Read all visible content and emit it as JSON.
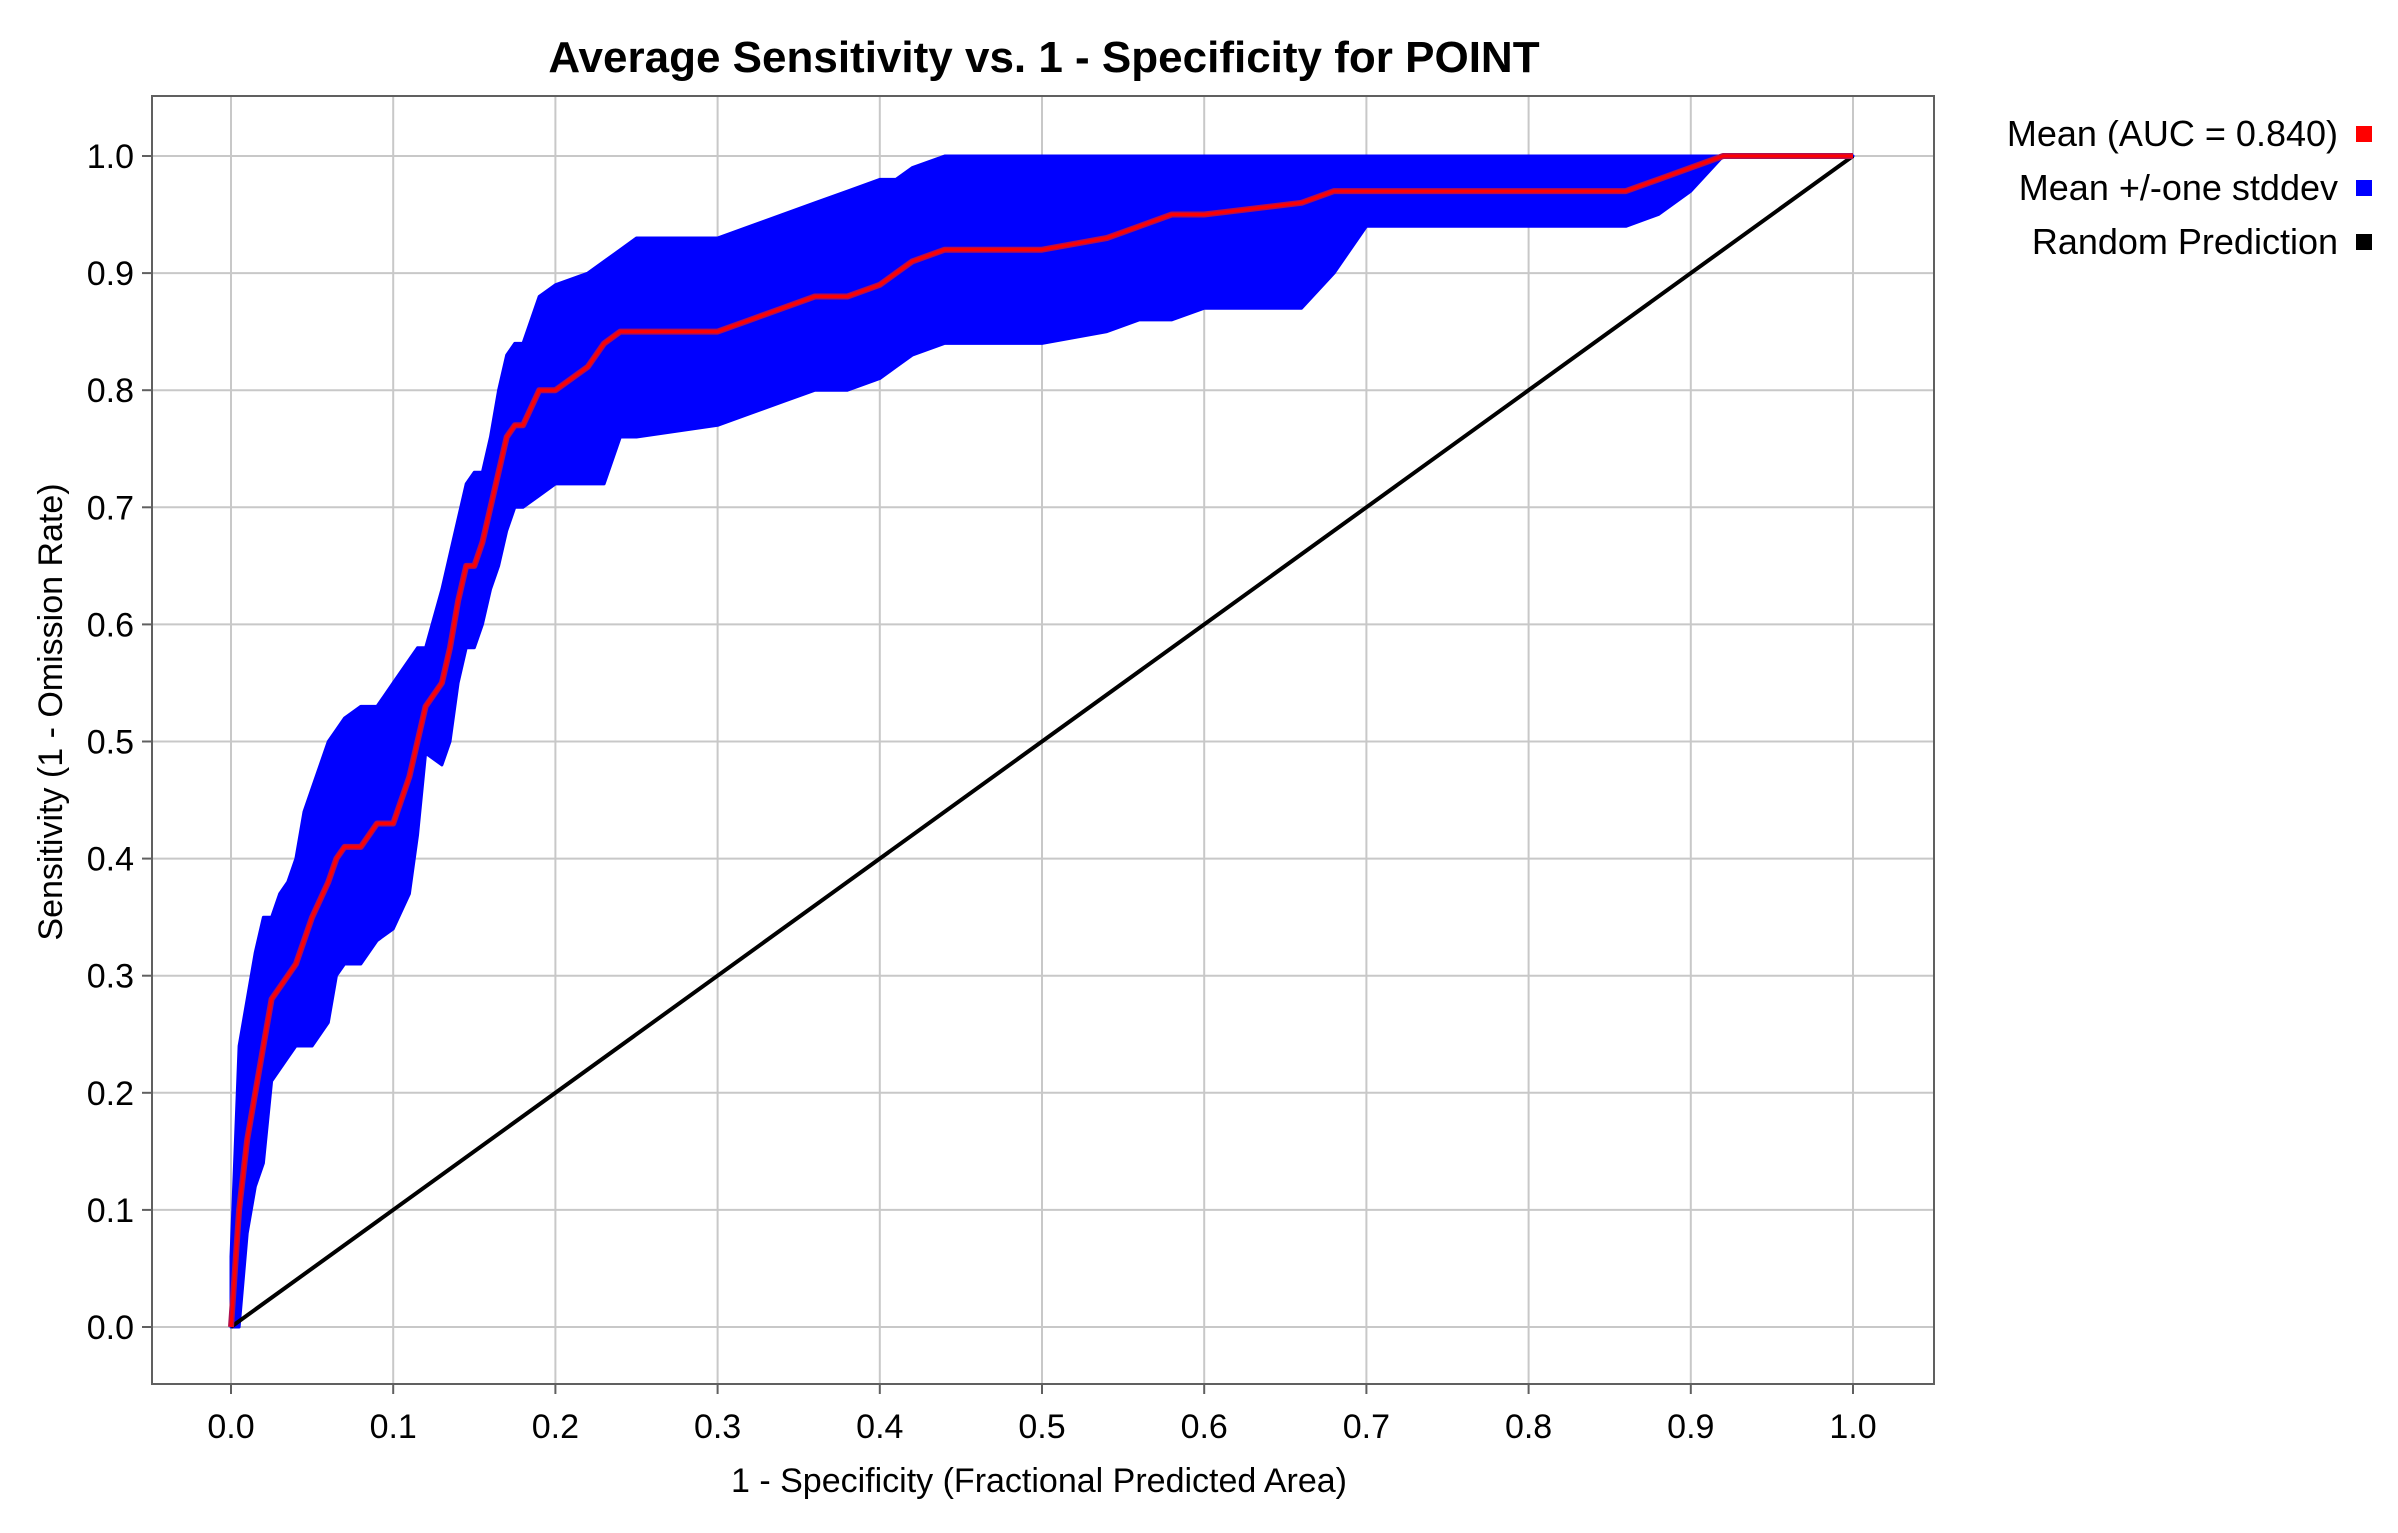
{
  "chart_data": {
    "type": "line",
    "title": "Average Sensitivity vs. 1 - Specificity for POINT",
    "xlabel": "1 - Specificity (Fractional Predicted Area)",
    "ylabel": "Sensitivity (1 - Omission Rate)",
    "xlim": [
      0.0,
      1.0
    ],
    "ylim": [
      0.0,
      1.0
    ],
    "xticks": [
      "0.0",
      "0.1",
      "0.2",
      "0.3",
      "0.4",
      "0.5",
      "0.6",
      "0.7",
      "0.8",
      "0.9",
      "1.0"
    ],
    "yticks": [
      "0.0",
      "0.1",
      "0.2",
      "0.3",
      "0.4",
      "0.5",
      "0.6",
      "0.7",
      "0.8",
      "0.9",
      "1.0"
    ],
    "grid": true,
    "legend_position": "right",
    "series": [
      {
        "name": "Mean (AUC = 0.840)",
        "color": "#ff0000",
        "x": [
          0.0,
          0.005,
          0.01,
          0.015,
          0.02,
          0.025,
          0.03,
          0.035,
          0.04,
          0.045,
          0.05,
          0.06,
          0.065,
          0.07,
          0.08,
          0.09,
          0.1,
          0.11,
          0.115,
          0.12,
          0.13,
          0.135,
          0.14,
          0.145,
          0.15,
          0.155,
          0.16,
          0.165,
          0.17,
          0.175,
          0.18,
          0.19,
          0.2,
          0.22,
          0.23,
          0.24,
          0.25,
          0.3,
          0.32,
          0.34,
          0.36,
          0.38,
          0.4,
          0.41,
          0.42,
          0.44,
          0.5,
          0.54,
          0.56,
          0.58,
          0.6,
          0.66,
          0.68,
          0.7,
          0.74,
          0.86,
          0.88,
          0.9,
          0.92,
          0.94,
          1.0
        ],
        "y": [
          0.0,
          0.1,
          0.16,
          0.2,
          0.24,
          0.28,
          0.29,
          0.3,
          0.31,
          0.33,
          0.35,
          0.38,
          0.4,
          0.41,
          0.41,
          0.43,
          0.43,
          0.47,
          0.5,
          0.53,
          0.55,
          0.58,
          0.62,
          0.65,
          0.65,
          0.67,
          0.7,
          0.73,
          0.76,
          0.77,
          0.77,
          0.8,
          0.8,
          0.82,
          0.84,
          0.85,
          0.85,
          0.85,
          0.86,
          0.87,
          0.88,
          0.88,
          0.89,
          0.9,
          0.91,
          0.92,
          0.92,
          0.93,
          0.94,
          0.95,
          0.95,
          0.96,
          0.97,
          0.97,
          0.97,
          0.97,
          0.98,
          0.99,
          1.0,
          1.0,
          1.0
        ]
      },
      {
        "name": "Mean +/-one stddev",
        "color": "#0000ff",
        "x": [
          0.0,
          0.005,
          0.01,
          0.015,
          0.02,
          0.025,
          0.03,
          0.035,
          0.04,
          0.045,
          0.05,
          0.06,
          0.065,
          0.07,
          0.08,
          0.09,
          0.1,
          0.11,
          0.115,
          0.12,
          0.13,
          0.135,
          0.14,
          0.145,
          0.15,
          0.155,
          0.16,
          0.165,
          0.17,
          0.175,
          0.18,
          0.19,
          0.2,
          0.22,
          0.23,
          0.24,
          0.25,
          0.3,
          0.32,
          0.34,
          0.36,
          0.38,
          0.4,
          0.41,
          0.42,
          0.44,
          0.5,
          0.54,
          0.56,
          0.58,
          0.6,
          0.66,
          0.68,
          0.7,
          0.74,
          0.86,
          0.88,
          0.9,
          0.92,
          0.94,
          1.0
        ],
        "upper": [
          0.06,
          0.24,
          0.28,
          0.32,
          0.35,
          0.35,
          0.37,
          0.38,
          0.4,
          0.44,
          0.46,
          0.5,
          0.51,
          0.52,
          0.53,
          0.53,
          0.55,
          0.57,
          0.58,
          0.58,
          0.63,
          0.66,
          0.69,
          0.72,
          0.73,
          0.73,
          0.76,
          0.8,
          0.83,
          0.84,
          0.84,
          0.88,
          0.89,
          0.9,
          0.91,
          0.92,
          0.93,
          0.93,
          0.94,
          0.95,
          0.96,
          0.97,
          0.98,
          0.98,
          0.99,
          1.0,
          1.0,
          1.0,
          1.0,
          1.0,
          1.0,
          1.0,
          1.0,
          1.0,
          1.0,
          1.0,
          1.0,
          1.0,
          1.0,
          1.0,
          1.0
        ],
        "lower": [
          0.0,
          0.0,
          0.08,
          0.12,
          0.14,
          0.21,
          0.22,
          0.23,
          0.24,
          0.24,
          0.24,
          0.26,
          0.3,
          0.31,
          0.31,
          0.33,
          0.34,
          0.37,
          0.42,
          0.49,
          0.48,
          0.5,
          0.55,
          0.58,
          0.58,
          0.6,
          0.63,
          0.65,
          0.68,
          0.7,
          0.7,
          0.71,
          0.72,
          0.72,
          0.72,
          0.76,
          0.76,
          0.77,
          0.78,
          0.79,
          0.8,
          0.8,
          0.81,
          0.82,
          0.83,
          0.84,
          0.84,
          0.85,
          0.86,
          0.86,
          0.87,
          0.87,
          0.9,
          0.94,
          0.94,
          0.94,
          0.95,
          0.97,
          1.0,
          1.0,
          1.0
        ]
      },
      {
        "name": "Random Prediction",
        "color": "#000000",
        "x": [
          0.0,
          1.0
        ],
        "y": [
          0.0,
          1.0
        ]
      }
    ]
  }
}
